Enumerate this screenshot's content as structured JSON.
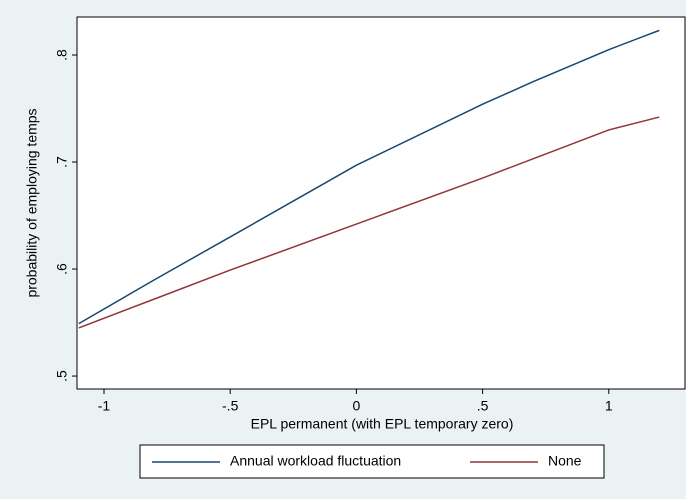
{
  "chart_data": {
    "type": "line",
    "x_label": "EPL permanent (with EPL temporary zero)",
    "y_label": "probability of employing temps",
    "x": [
      -1.1,
      -0.8,
      -0.5,
      0,
      0.5,
      0.7,
      1,
      1.2
    ],
    "series": [
      {
        "name": "Annual workload fluctuation",
        "color": "#1a476f",
        "values": [
          0.549,
          0.59,
          0.63,
          0.697,
          0.754,
          0.775,
          0.805,
          0.823
        ]
      },
      {
        "name": "None",
        "color": "#90353b",
        "values": [
          0.545,
          0.572,
          0.599,
          0.642,
          0.685,
          0.703,
          0.73,
          0.742
        ]
      }
    ],
    "xlim": [
      -1.107,
      1.302
    ],
    "ylim": [
      0.4879,
      0.8355
    ],
    "xticks": [
      -1,
      {
        "value": -0.5,
        "label": "-.5"
      },
      0,
      {
        "value": 0.5,
        "label": ".5"
      },
      1
    ],
    "yticks": [
      {
        "value": 0.5,
        "label": ".5"
      },
      {
        "value": 0.6,
        "label": ".6"
      },
      {
        "value": 0.7,
        "label": ".7"
      },
      {
        "value": 0.8,
        "label": ".8"
      }
    ],
    "grid": false,
    "legend_position": "bottom"
  }
}
